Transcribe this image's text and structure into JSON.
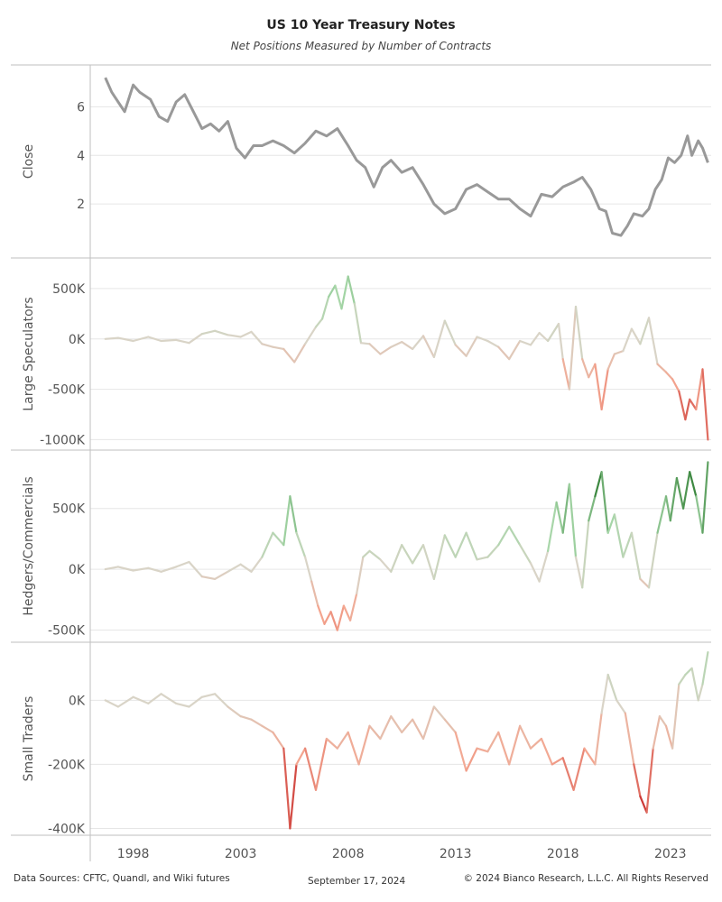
{
  "title": "US 10 Year Treasury Notes",
  "subtitle": "Net Positions Measured by Number of Contracts",
  "footer": {
    "sources": "Data Sources: CFTC, Quandl, and Wiki futures",
    "date": "September 17, 2024",
    "copyright": "© 2024 Bianco Research, L.L.C. All Rights Reserved"
  },
  "colors": {
    "close": "#999999",
    "positive_strong": "#2e7d32",
    "positive_light": "#a5d6a7",
    "neutral": "#d9d4c7",
    "negative_light": "#f4a58f",
    "negative_strong": "#c62828",
    "grid": "#e6e6e6",
    "divider": "#bfbfbf"
  },
  "chart_data": {
    "type": "line",
    "x_ticks": [
      "1998",
      "2003",
      "2008",
      "2013",
      "2018",
      "2023"
    ],
    "x_range": [
      1996.0,
      2024.9
    ],
    "panels": [
      {
        "name": "Close",
        "ylabel": "Close",
        "ylim": [
          0,
          7.5
        ],
        "y_ticks": [
          2,
          4,
          6
        ],
        "y_tick_labels": [
          "2",
          "4",
          "6"
        ],
        "color_mode": "solid",
        "x": [
          1996.7,
          1997.0,
          1997.3,
          1997.6,
          1998.0,
          1998.3,
          1998.8,
          1999.2,
          1999.6,
          2000.0,
          2000.4,
          2000.8,
          2001.2,
          2001.6,
          2002.0,
          2002.4,
          2002.8,
          2003.2,
          2003.6,
          2004.0,
          2004.5,
          2005.0,
          2005.5,
          2006.0,
          2006.5,
          2007.0,
          2007.5,
          2008.0,
          2008.4,
          2008.8,
          2009.2,
          2009.6,
          2010.0,
          2010.5,
          2011.0,
          2011.5,
          2012.0,
          2012.5,
          2013.0,
          2013.5,
          2014.0,
          2014.5,
          2015.0,
          2015.5,
          2016.0,
          2016.5,
          2017.0,
          2017.5,
          2018.0,
          2018.5,
          2018.9,
          2019.3,
          2019.7,
          2020.0,
          2020.3,
          2020.7,
          2021.0,
          2021.3,
          2021.7,
          2022.0,
          2022.3,
          2022.6,
          2022.9,
          2023.2,
          2023.5,
          2023.8,
          2024.0,
          2024.3,
          2024.5,
          2024.75
        ],
        "values": [
          7.2,
          6.6,
          6.2,
          5.8,
          6.9,
          6.6,
          6.3,
          5.6,
          5.4,
          6.2,
          6.5,
          5.8,
          5.1,
          5.3,
          5.0,
          5.4,
          4.3,
          3.9,
          4.4,
          4.4,
          4.6,
          4.4,
          4.1,
          4.5,
          5.0,
          4.8,
          5.1,
          4.4,
          3.8,
          3.5,
          2.7,
          3.5,
          3.8,
          3.3,
          3.5,
          2.8,
          2.0,
          1.6,
          1.8,
          2.6,
          2.8,
          2.5,
          2.2,
          2.2,
          1.8,
          1.5,
          2.4,
          2.3,
          2.7,
          2.9,
          3.1,
          2.6,
          1.8,
          1.7,
          0.8,
          0.7,
          1.1,
          1.6,
          1.5,
          1.8,
          2.6,
          3.0,
          3.9,
          3.7,
          4.0,
          4.8,
          4.0,
          4.6,
          4.3,
          3.7
        ]
      },
      {
        "name": "Large Speculators",
        "ylabel": "Large Speculators",
        "ylim": [
          -1050000,
          750000
        ],
        "y_ticks": [
          -1000000,
          -500000,
          0,
          500000
        ],
        "y_tick_labels": [
          "-1000K",
          "-500K",
          "0K",
          "500K"
        ],
        "color_mode": "diverging",
        "color_scale": 900000,
        "x": [
          1996.7,
          1997.3,
          1998.0,
          1998.7,
          1999.3,
          2000.0,
          2000.6,
          2001.2,
          2001.8,
          2002.4,
          2003.0,
          2003.5,
          2004.0,
          2004.5,
          2005.0,
          2005.5,
          2006.0,
          2006.5,
          2006.8,
          2007.1,
          2007.4,
          2007.7,
          2008.0,
          2008.3,
          2008.6,
          2009.0,
          2009.5,
          2010.0,
          2010.5,
          2011.0,
          2011.5,
          2012.0,
          2012.5,
          2013.0,
          2013.5,
          2014.0,
          2014.5,
          2015.0,
          2015.5,
          2016.0,
          2016.5,
          2016.9,
          2017.3,
          2017.8,
          2018.0,
          2018.3,
          2018.6,
          2018.9,
          2019.2,
          2019.5,
          2019.8,
          2020.1,
          2020.4,
          2020.8,
          2021.2,
          2021.6,
          2022.0,
          2022.4,
          2022.8,
          2023.1,
          2023.4,
          2023.7,
          2023.9,
          2024.2,
          2024.5,
          2024.75
        ],
        "values": [
          0,
          10000,
          -20000,
          20000,
          -20000,
          -10000,
          -40000,
          50000,
          80000,
          40000,
          20000,
          70000,
          -50000,
          -80000,
          -100000,
          -230000,
          -50000,
          120000,
          200000,
          420000,
          530000,
          300000,
          620000,
          350000,
          -40000,
          -50000,
          -150000,
          -80000,
          -30000,
          -100000,
          30000,
          -180000,
          180000,
          -60000,
          -170000,
          20000,
          -20000,
          -80000,
          -200000,
          -20000,
          -60000,
          60000,
          -20000,
          150000,
          -200000,
          -500000,
          320000,
          -200000,
          -380000,
          -250000,
          -700000,
          -300000,
          -150000,
          -120000,
          100000,
          -50000,
          210000,
          -250000,
          -330000,
          -400000,
          -520000,
          -800000,
          -600000,
          -700000,
          -300000,
          -1000000
        ]
      },
      {
        "name": "Hedgers/Commercials",
        "ylabel": "Hedgers/Commercials",
        "ylim": [
          -570000,
          950000
        ],
        "y_ticks": [
          -500000,
          0,
          500000
        ],
        "y_tick_labels": [
          "-500K",
          "0K",
          "500K"
        ],
        "color_mode": "diverging",
        "color_scale": 750000,
        "x": [
          1996.7,
          1997.3,
          1998.0,
          1998.7,
          1999.3,
          2000.0,
          2000.6,
          2001.2,
          2001.8,
          2002.4,
          2003.0,
          2003.5,
          2004.0,
          2004.5,
          2005.0,
          2005.3,
          2005.6,
          2006.0,
          2006.3,
          2006.6,
          2006.9,
          2007.2,
          2007.5,
          2007.8,
          2008.1,
          2008.4,
          2008.7,
          2009.0,
          2009.5,
          2010.0,
          2010.5,
          2011.0,
          2011.5,
          2012.0,
          2012.5,
          2013.0,
          2013.5,
          2014.0,
          2014.5,
          2015.0,
          2015.5,
          2016.0,
          2016.5,
          2016.9,
          2017.3,
          2017.7,
          2018.0,
          2018.3,
          2018.6,
          2018.9,
          2019.2,
          2019.5,
          2019.8,
          2020.1,
          2020.4,
          2020.8,
          2021.2,
          2021.6,
          2022.0,
          2022.4,
          2022.8,
          2023.0,
          2023.3,
          2023.6,
          2023.9,
          2024.2,
          2024.5,
          2024.75
        ],
        "values": [
          0,
          20000,
          -10000,
          10000,
          -20000,
          20000,
          60000,
          -60000,
          -80000,
          -20000,
          40000,
          -20000,
          100000,
          300000,
          200000,
          600000,
          300000,
          100000,
          -100000,
          -300000,
          -450000,
          -350000,
          -500000,
          -300000,
          -420000,
          -200000,
          100000,
          150000,
          80000,
          -20000,
          200000,
          50000,
          200000,
          -80000,
          280000,
          100000,
          300000,
          80000,
          100000,
          200000,
          350000,
          200000,
          50000,
          -100000,
          150000,
          550000,
          300000,
          700000,
          100000,
          -150000,
          400000,
          600000,
          800000,
          300000,
          450000,
          100000,
          300000,
          -80000,
          -150000,
          300000,
          600000,
          400000,
          750000,
          500000,
          800000,
          600000,
          300000,
          880000
        ]
      },
      {
        "name": "Small Traders",
        "ylabel": "Small Traders",
        "ylim": [
          -410000,
          170000
        ],
        "y_ticks": [
          -400000,
          -200000,
          0
        ],
        "y_tick_labels": [
          "-400K",
          "-200K",
          "0K"
        ],
        "color_mode": "diverging",
        "color_scale": 350000,
        "x": [
          1996.7,
          1997.3,
          1998.0,
          1998.7,
          1999.3,
          2000.0,
          2000.6,
          2001.2,
          2001.8,
          2002.4,
          2003.0,
          2003.5,
          2004.0,
          2004.5,
          2005.0,
          2005.3,
          2005.6,
          2006.0,
          2006.5,
          2007.0,
          2007.5,
          2008.0,
          2008.5,
          2009.0,
          2009.5,
          2010.0,
          2010.5,
          2011.0,
          2011.5,
          2012.0,
          2012.5,
          2013.0,
          2013.5,
          2014.0,
          2014.5,
          2015.0,
          2015.5,
          2016.0,
          2016.5,
          2017.0,
          2017.5,
          2018.0,
          2018.5,
          2019.0,
          2019.5,
          2019.8,
          2020.1,
          2020.5,
          2020.9,
          2021.3,
          2021.6,
          2021.9,
          2022.2,
          2022.5,
          2022.8,
          2023.1,
          2023.4,
          2023.7,
          2024.0,
          2024.3,
          2024.5,
          2024.75
        ],
        "values": [
          0,
          -20000,
          10000,
          -10000,
          20000,
          -10000,
          -20000,
          10000,
          20000,
          -20000,
          -50000,
          -60000,
          -80000,
          -100000,
          -150000,
          -400000,
          -200000,
          -150000,
          -280000,
          -120000,
          -150000,
          -100000,
          -200000,
          -80000,
          -120000,
          -50000,
          -100000,
          -60000,
          -120000,
          -20000,
          -60000,
          -100000,
          -220000,
          -150000,
          -160000,
          -100000,
          -200000,
          -80000,
          -150000,
          -120000,
          -200000,
          -180000,
          -280000,
          -150000,
          -200000,
          -40000,
          80000,
          0,
          -40000,
          -200000,
          -300000,
          -350000,
          -150000,
          -50000,
          -80000,
          -150000,
          50000,
          80000,
          100000,
          0,
          50000,
          150000
        ]
      }
    ]
  }
}
